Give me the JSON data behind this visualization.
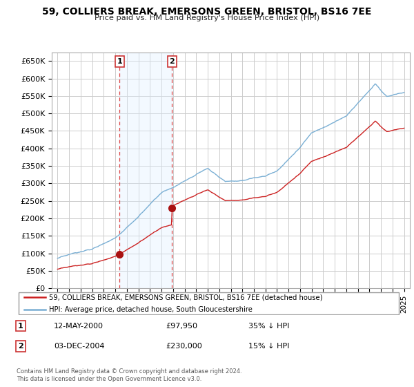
{
  "title": "59, COLLIERS BREAK, EMERSONS GREEN, BRISTOL, BS16 7EE",
  "subtitle": "Price paid vs. HM Land Registry's House Price Index (HPI)",
  "ylim": [
    0,
    675000
  ],
  "yticks": [
    0,
    50000,
    100000,
    150000,
    200000,
    250000,
    300000,
    350000,
    400000,
    450000,
    500000,
    550000,
    600000,
    650000
  ],
  "ytick_labels": [
    "£0",
    "£50K",
    "£100K",
    "£150K",
    "£200K",
    "£250K",
    "£300K",
    "£350K",
    "£400K",
    "£450K",
    "£500K",
    "£550K",
    "£600K",
    "£650K"
  ],
  "hpi_color": "#7aafd4",
  "price_color": "#cc2222",
  "dot_color": "#aa1111",
  "vline_color": "#dd4444",
  "shade_color": "#ddeeff",
  "background_color": "#ffffff",
  "grid_color": "#cccccc",
  "transaction1": {
    "date": "12-MAY-2000",
    "price": "97,950",
    "hpi_diff": "35% ↓ HPI",
    "label": "1"
  },
  "transaction2": {
    "date": "03-DEC-2004",
    "price": "230,000",
    "hpi_diff": "15% ↓ HPI",
    "label": "2"
  },
  "legend_line1": "59, COLLIERS BREAK, EMERSONS GREEN, BRISTOL, BS16 7EE (detached house)",
  "legend_line2": "HPI: Average price, detached house, South Gloucestershire",
  "footnote": "Contains HM Land Registry data © Crown copyright and database right 2024.\nThis data is licensed under the Open Government Licence v3.0.",
  "sale1_year": 2000.37,
  "sale2_year": 2004.92,
  "sale1_price": 97950,
  "sale2_price": 230000,
  "xlim_left": 1994.5,
  "xlim_right": 2025.5
}
